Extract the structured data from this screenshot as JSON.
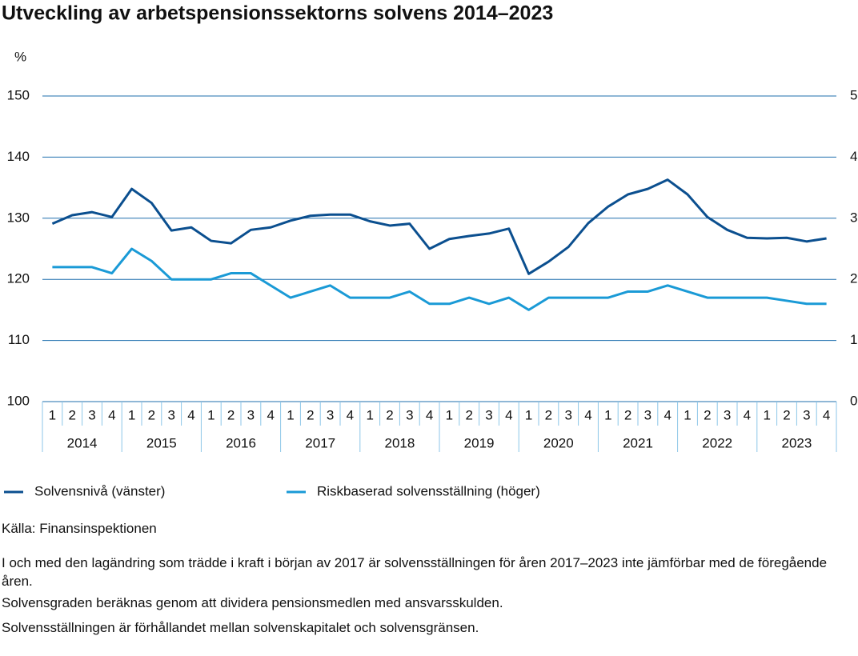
{
  "chart_data": {
    "type": "line",
    "title": "Utveckling av arbetspensionssektorns solvens 2014–2023",
    "y_label": "%",
    "categories": [
      "1",
      "2",
      "3",
      "4",
      "1",
      "2",
      "3",
      "4",
      "1",
      "2",
      "3",
      "4",
      "1",
      "2",
      "3",
      "4",
      "1",
      "2",
      "3",
      "4",
      "1",
      "2",
      "3",
      "4",
      "1",
      "2",
      "3",
      "4",
      "1",
      "2",
      "3",
      "4",
      "1",
      "2",
      "3",
      "4",
      "1",
      "2",
      "3",
      "4"
    ],
    "year_groups": [
      "2014",
      "2015",
      "2016",
      "2017",
      "2018",
      "2019",
      "2020",
      "2021",
      "2022",
      "2023"
    ],
    "ylim": [
      100,
      150
    ],
    "yticks": [
      100,
      110,
      120,
      130,
      140,
      150
    ],
    "y2lim": [
      0,
      5
    ],
    "y2ticks": [
      0,
      1,
      2,
      3,
      4,
      5
    ],
    "grid": true,
    "series": [
      {
        "name": "Solvensnivå (vänster)",
        "color": "#0b4f8f",
        "axis": "y",
        "values": [
          129.1,
          130.5,
          131.0,
          130.2,
          134.8,
          132.5,
          128.0,
          128.5,
          126.3,
          125.9,
          128.1,
          128.5,
          129.6,
          130.4,
          130.6,
          130.6,
          129.5,
          128.8,
          129.1,
          125.0,
          126.6,
          127.1,
          127.5,
          128.3,
          120.9,
          122.9,
          125.3,
          129.2,
          131.9,
          133.9,
          134.8,
          136.3,
          133.9,
          130.2,
          128.1,
          126.8,
          126.7,
          126.8,
          126.2,
          126.7
        ]
      },
      {
        "name": "Riskbaserad solvensställning (höger)",
        "color": "#1a9ad6",
        "axis": "y2",
        "values": [
          2.2,
          2.2,
          2.2,
          2.1,
          2.5,
          2.3,
          2.0,
          2.0,
          2.0,
          2.1,
          2.1,
          1.9,
          1.7,
          1.8,
          1.9,
          1.7,
          1.7,
          1.7,
          1.8,
          1.6,
          1.6,
          1.7,
          1.6,
          1.7,
          1.5,
          1.7,
          1.7,
          1.7,
          1.7,
          1.8,
          1.8,
          1.9,
          1.8,
          1.7,
          1.7,
          1.7,
          1.7,
          1.65,
          1.6,
          1.6
        ]
      }
    ],
    "source": "Källa: Finansinspektionen",
    "notes": [
      "I och med den lagändring som trädde i kraft i början av 2017 är solvensställningen för åren 2017–2023 inte jämförbar med de föregående åren.",
      "Solvensgraden beräknas genom att dividera pensionsmedlen med ansvarsskulden.",
      "Solvensställningen är förhållandet mellan solvenskapitalet och solvensgränsen."
    ]
  }
}
